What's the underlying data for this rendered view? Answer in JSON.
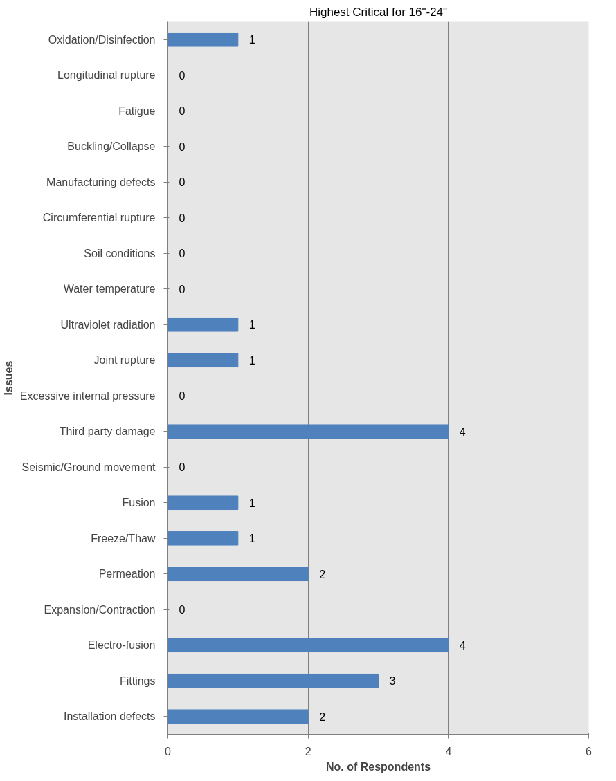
{
  "chart_data": {
    "type": "bar",
    "orientation": "horizontal",
    "title": "Highest Critical for 16\"-24\"",
    "xlabel": "No. of Respondents",
    "ylabel": "Issues",
    "categories": [
      "Oxidation/Disinfection",
      "Longitudinal rupture",
      "Fatigue",
      "Buckling/Collapse",
      "Manufacturing defects",
      "Circumferential rupture",
      "Soil conditions",
      "Water temperature",
      "Ultraviolet radiation",
      "Joint rupture",
      "Excessive internal pressure",
      "Third party damage",
      "Seismic/Ground movement",
      "Fusion",
      "Freeze/Thaw",
      "Permeation",
      "Expansion/Contraction",
      "Electro-fusion",
      "Fittings",
      "Installation defects"
    ],
    "values": [
      1,
      0,
      0,
      0,
      0,
      0,
      0,
      0,
      1,
      1,
      0,
      4,
      0,
      1,
      1,
      2,
      0,
      4,
      3,
      2
    ],
    "color": "#4f81bd",
    "xlim": [
      0,
      6
    ],
    "xticks": [
      0,
      2,
      4,
      6
    ],
    "grid": "x",
    "data_labels": true
  }
}
